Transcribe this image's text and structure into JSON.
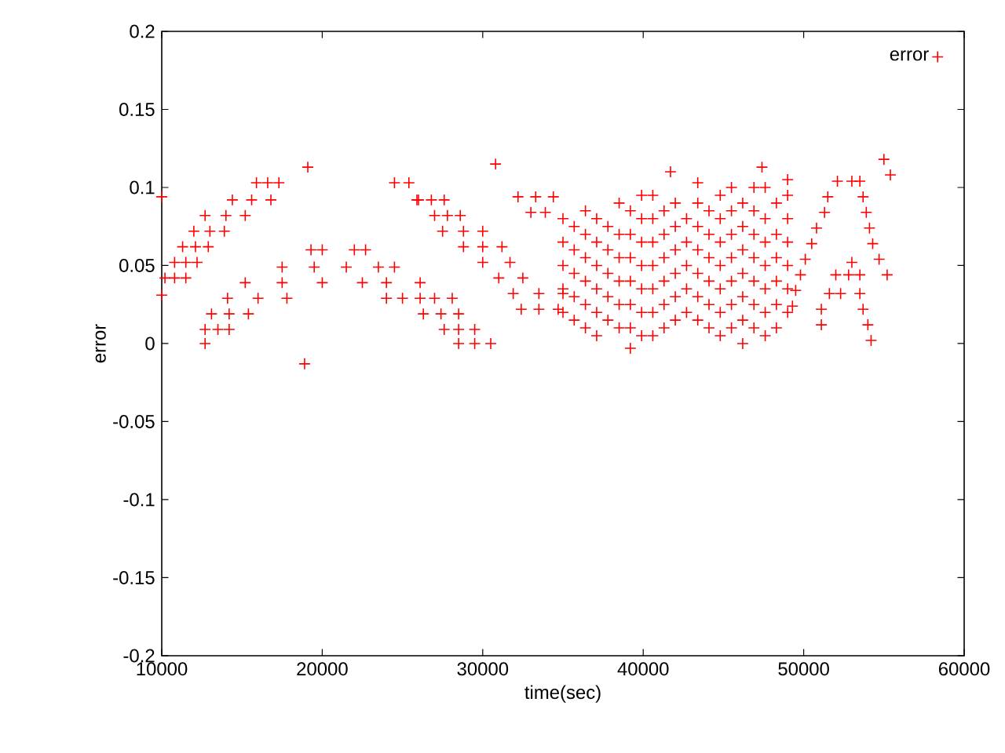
{
  "chart_data": {
    "type": "scatter",
    "xlabel": "time(sec)",
    "ylabel": "error",
    "xlim": [
      10000,
      60000
    ],
    "xticks": [
      10000,
      20000,
      30000,
      40000,
      50000,
      60000
    ],
    "ylim": [
      -0.2,
      0.2
    ],
    "yticks": [
      -0.2,
      -0.15,
      -0.1,
      -0.05,
      0,
      0.05,
      0.1,
      0.15,
      0.2
    ],
    "legend": "top right",
    "marker": "cross",
    "series": [
      {
        "name": "error",
        "color": "#ff0000",
        "x": [
          10000,
          10000,
          10200,
          10800,
          11500,
          10800,
          11500,
          12200,
          11300,
          12100,
          12900,
          12000,
          13000,
          13900,
          12700,
          14000,
          15200,
          14400,
          15600,
          16800,
          15900,
          16600,
          17300,
          12700,
          12700,
          13500,
          14200,
          13100,
          14200,
          15400,
          14100,
          16000,
          17800,
          15200,
          17500,
          20000,
          22500,
          24000,
          26100,
          17500,
          19500,
          21500,
          23500,
          24500,
          19300,
          20000,
          22000,
          22700,
          18900,
          19100,
          24000,
          25000,
          26100,
          24500,
          25400,
          25900,
          30800,
          26000,
          26800,
          27600,
          27000,
          27800,
          28600,
          27500,
          28800,
          30000,
          28800,
          30000,
          31200,
          30000,
          31700,
          31000,
          32500,
          31900,
          33500,
          35000,
          32400,
          33500,
          34700,
          32200,
          33300,
          34400,
          33000,
          33900,
          26300,
          27400,
          28500,
          27600,
          28500,
          29500,
          28500,
          29500,
          30500,
          27000,
          28100,
          35000,
          35000,
          35000,
          35000,
          35000,
          35700,
          35700,
          35700,
          35700,
          35700,
          36400,
          36400,
          36400,
          36400,
          36400,
          36400,
          37100,
          37100,
          37100,
          37100,
          37100,
          37100,
          37800,
          37800,
          37800,
          37800,
          37800,
          38500,
          38500,
          38500,
          38500,
          38500,
          38500,
          39200,
          39200,
          39200,
          39200,
          39200,
          39200,
          39200,
          39900,
          39900,
          39900,
          39900,
          39900,
          39900,
          39900,
          40600,
          40600,
          40600,
          40600,
          40600,
          40600,
          40600,
          41300,
          41300,
          41300,
          41300,
          41300,
          41300,
          41700,
          42000,
          42000,
          42000,
          42000,
          42000,
          42000,
          42700,
          42700,
          42700,
          42700,
          42700,
          43400,
          43400,
          43400,
          43400,
          43400,
          43400,
          43400,
          44100,
          44100,
          44100,
          44100,
          44100,
          44100,
          44800,
          44800,
          44800,
          44800,
          44800,
          44800,
          44800,
          45500,
          45500,
          45500,
          45500,
          45500,
          45500,
          45500,
          46200,
          46200,
          46200,
          46200,
          46200,
          46200,
          46200,
          46900,
          46900,
          46900,
          46900,
          46900,
          46900,
          46900,
          47400,
          47600,
          47600,
          47600,
          47600,
          47600,
          47600,
          47600,
          48300,
          48300,
          48300,
          48300,
          48300,
          48300,
          49000,
          49000,
          49000,
          49000,
          49000,
          49000,
          49000,
          52100,
          51500,
          51300,
          50800,
          50500,
          50100,
          49800,
          49500,
          49300,
          51100,
          51100,
          53500,
          53700,
          53900,
          54100,
          54300,
          54700,
          55200,
          52000,
          52800,
          53500,
          53000,
          51600,
          52300,
          53500,
          53700,
          54000,
          54200,
          55000,
          55400,
          53000
        ],
        "values": [
          0.031,
          0.094,
          0.042,
          0.042,
          0.042,
          0.052,
          0.052,
          0.052,
          0.062,
          0.062,
          0.062,
          0.072,
          0.072,
          0.072,
          0.082,
          0.082,
          0.082,
          0.092,
          0.092,
          0.092,
          0.103,
          0.103,
          0.103,
          0,
          0.009,
          0.009,
          0.009,
          0.019,
          0.019,
          0.019,
          0.029,
          0.029,
          0.029,
          0.039,
          0.039,
          0.039,
          0.039,
          0.039,
          0.039,
          0.049,
          0.049,
          0.049,
          0.049,
          0.049,
          0.06,
          0.06,
          0.06,
          0.06,
          -0.013,
          0.113,
          0.029,
          0.029,
          0.029,
          0.103,
          0.103,
          0.092,
          0.115,
          0.092,
          0.092,
          0.092,
          0.082,
          0.082,
          0.082,
          0.072,
          0.072,
          0.072,
          0.062,
          0.062,
          0.062,
          0.052,
          0.052,
          0.042,
          0.042,
          0.032,
          0.032,
          0.032,
          0.022,
          0.022,
          0.022,
          0.094,
          0.094,
          0.094,
          0.084,
          0.084,
          0.019,
          0.019,
          0.019,
          0.009,
          0.009,
          0.009,
          0,
          0,
          0,
          0.029,
          0.029,
          0.02,
          0.035,
          0.05,
          0.065,
          0.08,
          0.015,
          0.03,
          0.045,
          0.06,
          0.075,
          0.01,
          0.025,
          0.04,
          0.055,
          0.07,
          0.085,
          0.005,
          0.02,
          0.035,
          0.05,
          0.065,
          0.08,
          0.015,
          0.03,
          0.045,
          0.06,
          0.075,
          0.01,
          0.025,
          0.04,
          0.055,
          0.07,
          0.09,
          -0.003,
          0.01,
          0.025,
          0.04,
          0.055,
          0.07,
          0.085,
          0.005,
          0.02,
          0.035,
          0.05,
          0.065,
          0.08,
          0.095,
          0.005,
          0.02,
          0.035,
          0.05,
          0.065,
          0.08,
          0.095,
          0.01,
          0.025,
          0.04,
          0.055,
          0.07,
          0.085,
          0.11,
          0.015,
          0.03,
          0.045,
          0.06,
          0.075,
          0.09,
          0.02,
          0.035,
          0.05,
          0.065,
          0.08,
          0.015,
          0.03,
          0.045,
          0.06,
          0.075,
          0.09,
          0.103,
          0.01,
          0.025,
          0.04,
          0.055,
          0.07,
          0.085,
          0.005,
          0.02,
          0.035,
          0.05,
          0.065,
          0.08,
          0.095,
          0.01,
          0.025,
          0.04,
          0.055,
          0.07,
          0.085,
          0.1,
          0,
          0.015,
          0.03,
          0.045,
          0.06,
          0.075,
          0.09,
          0.01,
          0.025,
          0.04,
          0.055,
          0.07,
          0.085,
          0.1,
          0.113,
          0.005,
          0.02,
          0.035,
          0.05,
          0.065,
          0.08,
          0.1,
          0.01,
          0.025,
          0.04,
          0.055,
          0.07,
          0.09,
          0.02,
          0.035,
          0.05,
          0.065,
          0.08,
          0.095,
          0.105,
          0.104,
          0.094,
          0.084,
          0.074,
          0.064,
          0.054,
          0.044,
          0.034,
          0.024,
          0.022,
          0.012,
          0.104,
          0.094,
          0.084,
          0.074,
          0.064,
          0.054,
          0.044,
          0.044,
          0.044,
          0.044,
          0.052,
          0.032,
          0.032,
          0.032,
          0.022,
          0.012,
          0.002,
          0.118,
          0.108,
          0.104
        ]
      }
    ]
  }
}
